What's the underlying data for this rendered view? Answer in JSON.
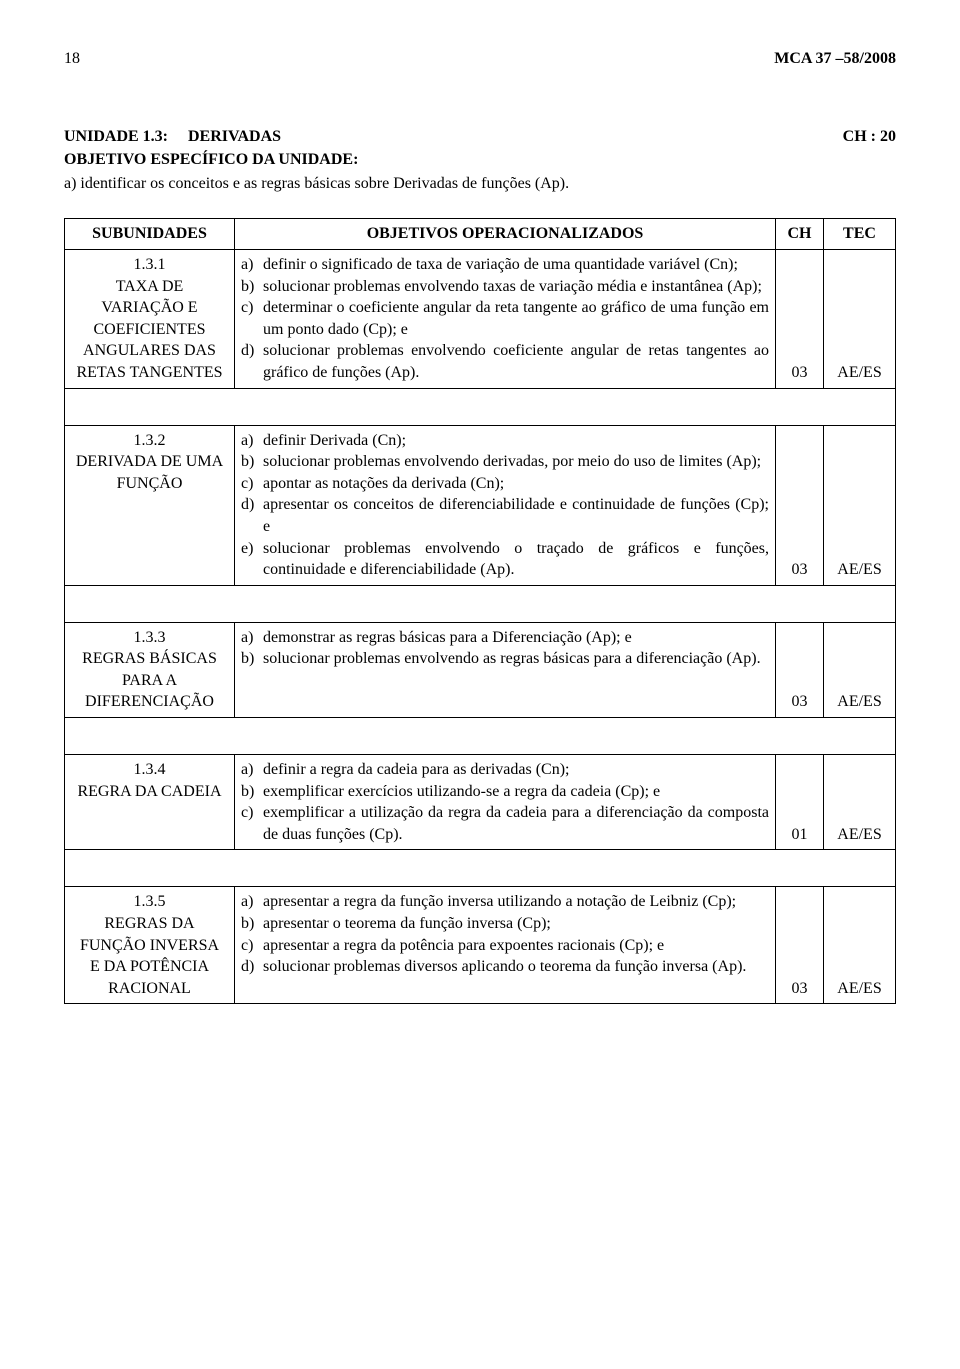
{
  "header": {
    "page_num": "18",
    "doc_ref": "MCA 37 –58/2008"
  },
  "unit": {
    "title_left": "UNIDADE 1.3:     DERIVADAS",
    "ch_label": "CH : 20",
    "obj_label": "OBJETIVO ESPECÍFICO DA UNIDADE:",
    "obj_text": "a) identificar os conceitos e as regras básicas sobre Derivadas de funções (Ap)."
  },
  "table": {
    "head": {
      "sub": "SUBUNIDADES",
      "obj": "OBJETIVOS OPERACIONALIZADOS",
      "ch": "CH",
      "tec": "TEC"
    },
    "rows": [
      {
        "sub_lines": [
          "1.3.1",
          "TAXA DE",
          "VARIAÇÃO E",
          "COEFICIENTES",
          "ANGULARES DAS",
          "RETAS TANGENTES"
        ],
        "items": [
          {
            "m": "a)",
            "t": "definir o significado de taxa de variação de uma quantidade variável (Cn);"
          },
          {
            "m": "b)",
            "t": "solucionar problemas envolvendo taxas de variação média e instantânea (Ap);"
          },
          {
            "m": "c)",
            "t": "determinar o coeficiente angular da reta tangente ao gráfico de uma função em um ponto dado (Cp); e"
          },
          {
            "m": "d)",
            "t": "solucionar problemas envolvendo coeficiente angular de retas tangentes ao gráfico de funções (Ap)."
          }
        ],
        "ch": "03",
        "tec": "AE/ES"
      },
      {
        "sub_lines": [
          "1.3.2",
          "DERIVADA DE UMA",
          "FUNÇÃO"
        ],
        "items": [
          {
            "m": "a)",
            "t": "definir Derivada (Cn);"
          },
          {
            "m": "b)",
            "t": "solucionar problemas envolvendo derivadas, por meio do uso de limites (Ap);"
          },
          {
            "m": "c)",
            "t": "apontar as notações da derivada (Cn);"
          },
          {
            "m": "d)",
            "t": "apresentar os conceitos de diferenciabilidade e continuidade de funções (Cp); e"
          },
          {
            "m": "e)",
            "t": "solucionar problemas envolvendo o traçado de gráficos e funções, continuidade e diferenciabilidade (Ap)."
          }
        ],
        "ch": "03",
        "tec": "AE/ES"
      },
      {
        "sub_lines": [
          "1.3.3",
          "REGRAS BÁSICAS",
          "PARA A",
          "DIFERENCIAÇÃO"
        ],
        "items": [
          {
            "m": "a)",
            "t": "demonstrar as regras básicas para a Diferenciação (Ap); e"
          },
          {
            "m": "b)",
            "t": "solucionar problemas envolvendo as regras básicas para a diferenciação (Ap)."
          }
        ],
        "ch": "03",
        "tec": "AE/ES"
      },
      {
        "sub_lines": [
          "1.3.4",
          "REGRA DA CADEIA"
        ],
        "items": [
          {
            "m": "a)",
            "t": "definir a regra da cadeia para as derivadas (Cn);"
          },
          {
            "m": "b)",
            "t": "exemplificar exercícios utilizando-se a regra da cadeia (Cp); e"
          },
          {
            "m": "c)",
            "t": "exemplificar a utilização da regra da cadeia para a diferenciação da composta de duas  funções (Cp)."
          }
        ],
        "ch": "01",
        "tec": "AE/ES"
      },
      {
        "sub_lines": [
          "1.3.5",
          "REGRAS DA",
          "FUNÇÃO INVERSA",
          "E DA POTÊNCIA",
          "RACIONAL"
        ],
        "items": [
          {
            "m": "a)",
            "t": "apresentar a regra da função inversa utilizando a notação de Leibniz (Cp);"
          },
          {
            "m": "b)",
            "t": "apresentar o teorema da função inversa (Cp);"
          },
          {
            "m": "c)",
            "t": "apresentar a regra da potência para expoentes racionais (Cp); e"
          },
          {
            "m": "d)",
            "t": "solucionar problemas diversos aplicando o teorema da função inversa (Ap)."
          }
        ],
        "ch": "03",
        "tec": "AE/ES"
      }
    ]
  }
}
